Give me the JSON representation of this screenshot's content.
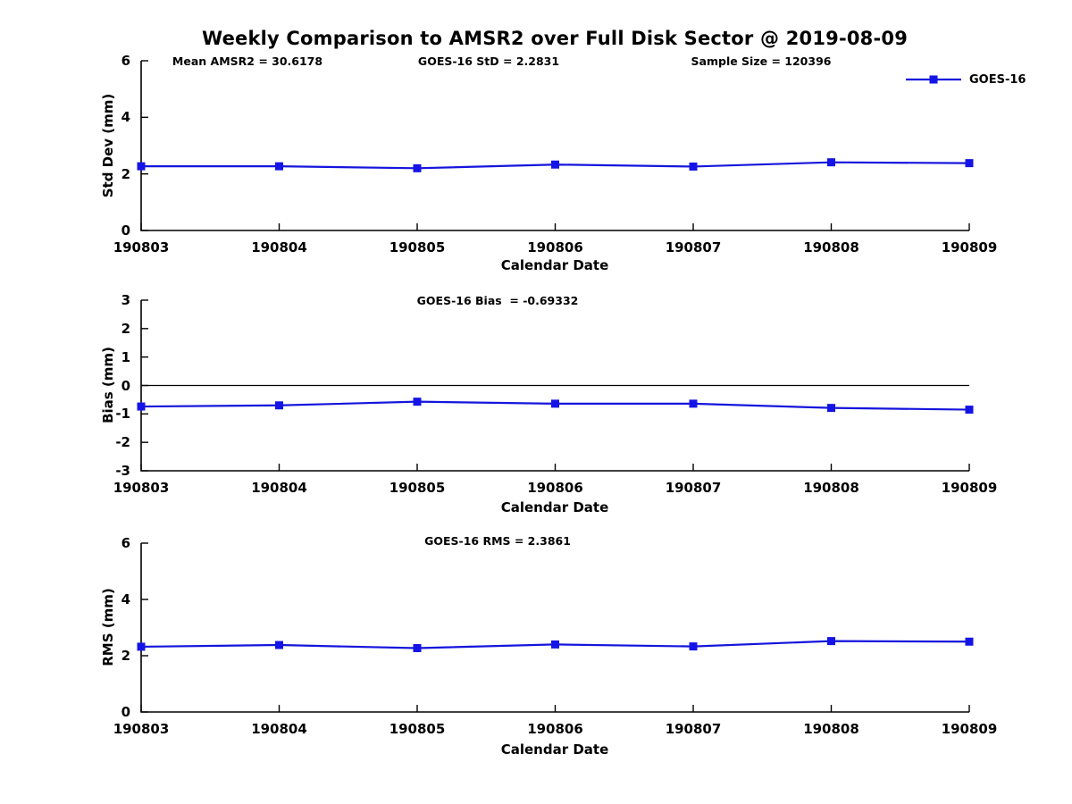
{
  "page": {
    "title": "Weekly Comparison to AMSR2 over Full Disk Sector @ 2019-08-09"
  },
  "colors": {
    "series": "#1515dd",
    "marker": "#1414e6",
    "axis": "#000000",
    "text": "#000000",
    "background": "#ffffff"
  },
  "chart_data": [
    {
      "id": "std-dev",
      "type": "line",
      "annotations": [
        "Mean AMSR2 = 30.6178",
        "GOES-16 StD = 2.2831",
        "Sample Size = 120396"
      ],
      "ylabel": "Std Dev (mm)",
      "xlabel": "Calendar Date",
      "categories": [
        "190803",
        "190804",
        "190805",
        "190806",
        "190807",
        "190808",
        "190809"
      ],
      "series": [
        {
          "name": "GOES-16",
          "values": [
            2.27,
            2.27,
            2.2,
            2.33,
            2.26,
            2.41,
            2.38
          ]
        }
      ],
      "ylim": [
        0,
        6
      ],
      "yticks": [
        0,
        2,
        4,
        6
      ],
      "grid": false,
      "legend": {
        "label": "GOES-16",
        "position": "top-right-outside"
      }
    },
    {
      "id": "bias",
      "type": "line",
      "annotations": [
        "GOES-16 Bias  = -0.69332"
      ],
      "ylabel": "Bias (mm)",
      "xlabel": "Calendar Date",
      "categories": [
        "190803",
        "190804",
        "190805",
        "190806",
        "190807",
        "190808",
        "190809"
      ],
      "series": [
        {
          "name": "GOES-16",
          "values": [
            -0.74,
            -0.7,
            -0.57,
            -0.64,
            -0.64,
            -0.79,
            -0.85
          ]
        }
      ],
      "ylim": [
        -3,
        3
      ],
      "yticks": [
        3,
        2,
        1,
        0,
        -1,
        -2,
        -3
      ],
      "zero_line": true,
      "grid": false
    },
    {
      "id": "rms",
      "type": "line",
      "annotations": [
        "GOES-16 RMS = 2.3861"
      ],
      "ylabel": "RMS (mm)",
      "xlabel": "Calendar Date",
      "categories": [
        "190803",
        "190804",
        "190805",
        "190806",
        "190807",
        "190808",
        "190809"
      ],
      "series": [
        {
          "name": "GOES-16",
          "values": [
            2.32,
            2.38,
            2.27,
            2.4,
            2.33,
            2.52,
            2.5
          ]
        }
      ],
      "ylim": [
        0,
        6
      ],
      "yticks": [
        0,
        2,
        4,
        6
      ],
      "grid": false
    }
  ]
}
